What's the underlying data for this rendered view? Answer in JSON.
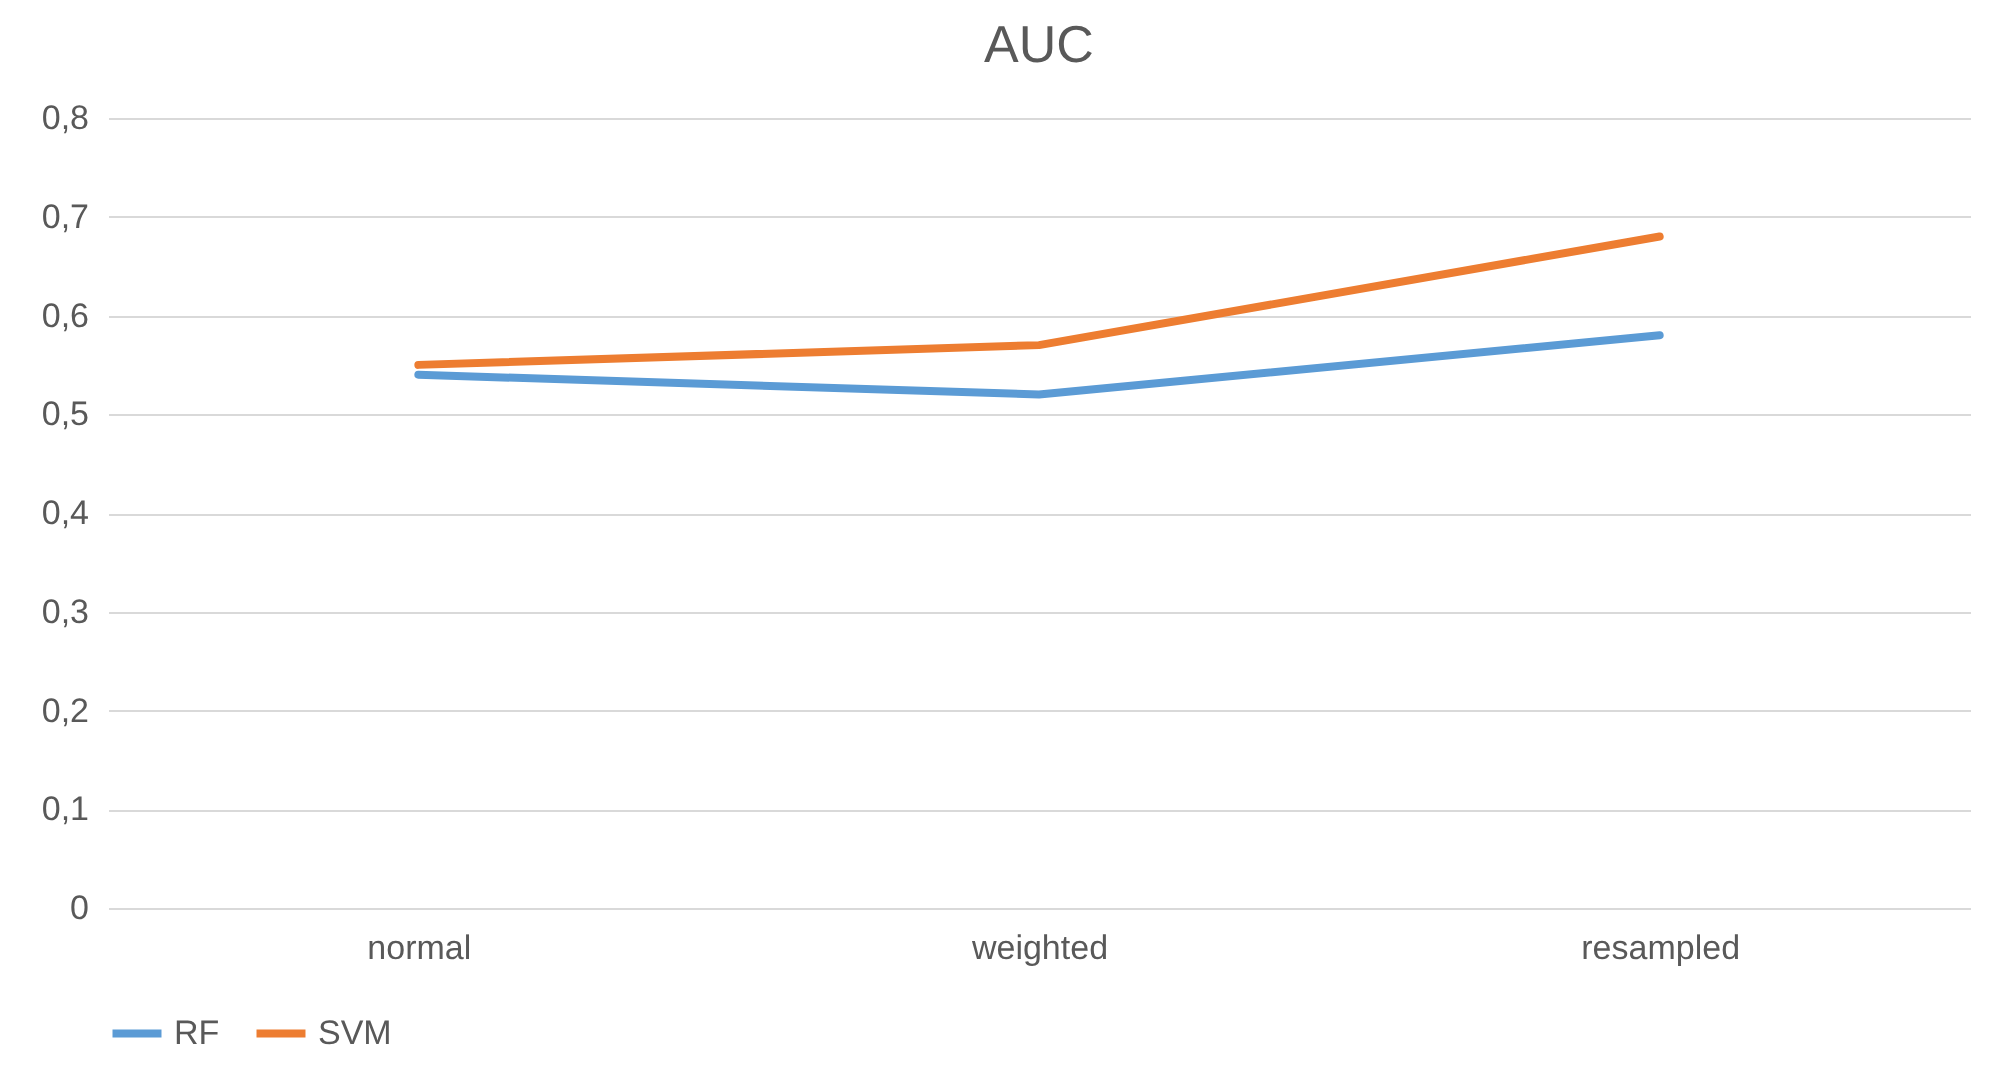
{
  "chart_data": {
    "type": "line",
    "title": "AUC",
    "categories": [
      "normal",
      "weighted",
      "resampled"
    ],
    "series": [
      {
        "name": "RF",
        "color": "#5b9bd5",
        "values": [
          0.54,
          0.52,
          0.58
        ]
      },
      {
        "name": "SVM",
        "color": "#ed7d31",
        "values": [
          0.55,
          0.57,
          0.68
        ]
      }
    ],
    "ylim": [
      0,
      0.8
    ],
    "yticks": [
      0,
      {
        "value": 0.1,
        "label": "0,1"
      },
      {
        "value": 0.2,
        "label": "0,2"
      },
      {
        "value": 0.3,
        "label": "0,3"
      },
      {
        "value": 0.4,
        "label": "0,4"
      },
      {
        "value": 0.5,
        "label": "0,5"
      },
      {
        "value": 0.6,
        "label": "0,6"
      },
      {
        "value": 0.7,
        "label": "0,7"
      },
      {
        "value": 0.8,
        "label": "0,8"
      }
    ],
    "grid": "y",
    "legend": "bottom",
    "marker": "none",
    "line_style": "solid"
  }
}
